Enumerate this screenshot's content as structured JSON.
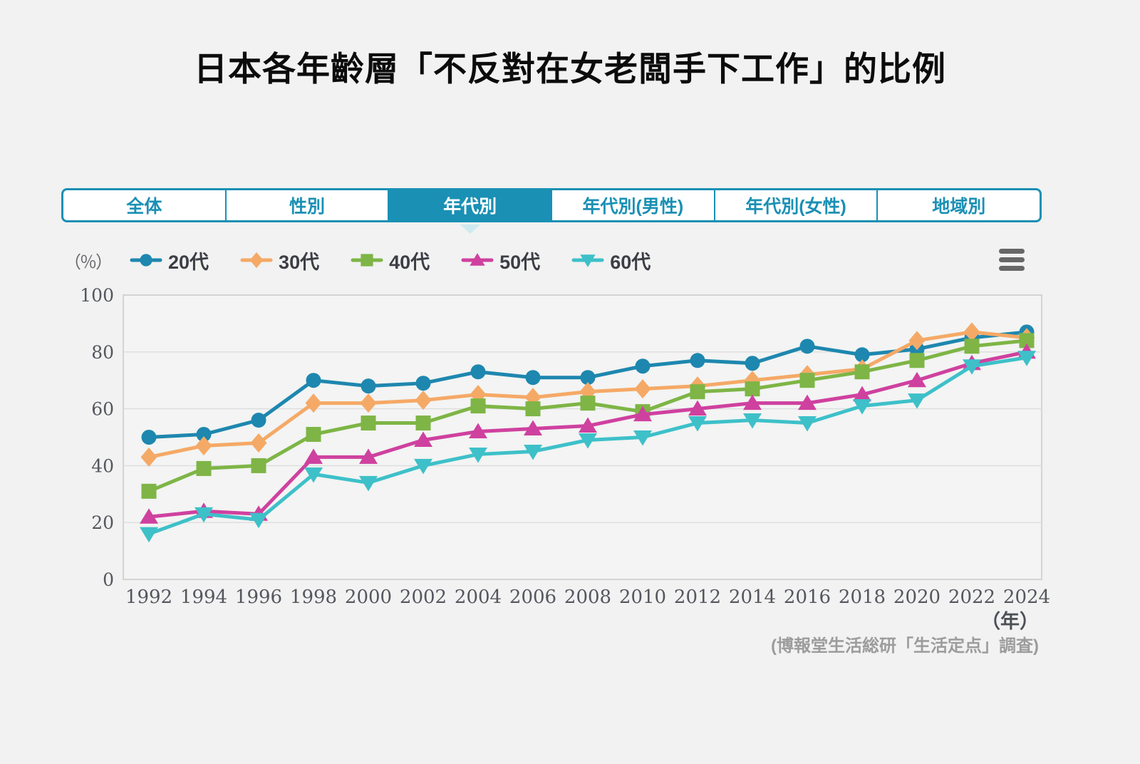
{
  "title": "日本各年齡層「不反對在女老闆手下工作」的比例",
  "tabs": {
    "items": [
      {
        "label": "全体",
        "active": false
      },
      {
        "label": "性別",
        "active": false
      },
      {
        "label": "年代別",
        "active": true
      },
      {
        "label": "年代別(男性)",
        "active": false
      },
      {
        "label": "年代別(女性)",
        "active": false
      },
      {
        "label": "地域別",
        "active": false
      }
    ]
  },
  "unit_label": "（％）",
  "footer": {
    "year_label": "（年）",
    "source": "(博報堂生活総研「生活定点」調査)"
  },
  "colors": {
    "accent_teal": "#1a90b4",
    "grid": "#dcdddd",
    "plot_border": "#c8caca",
    "plot_bg": "#f3f4f3",
    "axis_text": "#55565e",
    "menu_icon": "#676767"
  },
  "icons": {
    "menu": "hamburger-icon",
    "active_tab_pointer": "triangle-down-notch"
  },
  "chart_data": {
    "type": "line",
    "x": [
      1992,
      1994,
      1996,
      1998,
      2000,
      2002,
      2004,
      2006,
      2008,
      2010,
      2012,
      2014,
      2016,
      2018,
      2020,
      2022,
      2024
    ],
    "series": [
      {
        "name": "20代",
        "color": "#1e87af",
        "marker": "circle",
        "values": [
          50,
          51,
          56,
          70,
          68,
          69,
          73,
          71,
          71,
          75,
          77,
          76,
          82,
          79,
          81,
          85,
          87
        ]
      },
      {
        "name": "30代",
        "color": "#f5a966",
        "marker": "diamond",
        "values": [
          43,
          47,
          48,
          62,
          62,
          63,
          65,
          64,
          66,
          67,
          68,
          70,
          72,
          74,
          84,
          87,
          85
        ]
      },
      {
        "name": "40代",
        "color": "#7eb546",
        "marker": "square",
        "values": [
          31,
          39,
          40,
          51,
          55,
          55,
          61,
          60,
          62,
          59,
          66,
          67,
          70,
          73,
          77,
          82,
          84
        ]
      },
      {
        "name": "50代",
        "color": "#cf419f",
        "marker": "triangle-up",
        "values": [
          22,
          24,
          23,
          43,
          43,
          49,
          52,
          53,
          54,
          58,
          60,
          62,
          62,
          65,
          70,
          76,
          80
        ]
      },
      {
        "name": "60代",
        "color": "#3ec0c9",
        "marker": "triangle-down",
        "values": [
          16,
          23,
          21,
          37,
          34,
          40,
          44,
          45,
          49,
          50,
          55,
          56,
          55,
          61,
          63,
          75,
          78
        ]
      }
    ],
    "ylim": [
      0,
      100
    ],
    "yticks": [
      0,
      20,
      40,
      60,
      80,
      100
    ],
    "grid": true,
    "legend_position": "top",
    "xlabel": "（年）",
    "ylabel": "（％）"
  }
}
